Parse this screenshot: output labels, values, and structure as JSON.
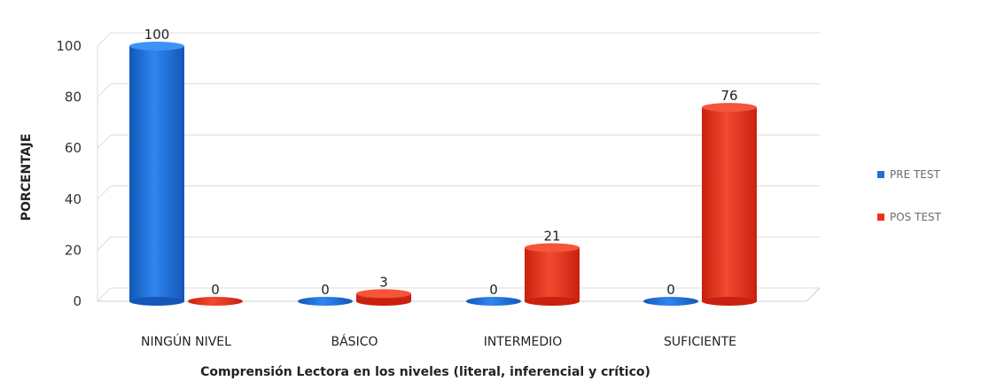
{
  "chart_data": {
    "type": "bar",
    "title": "",
    "xlabel": "Comprensión Lectora en los niveles (literal, inferencial y crítico)",
    "ylabel": "PORCENTAJE",
    "categories": [
      "NINGÚN NIVEL",
      "BÁSICO",
      "INTERMEDIO",
      "SUFICIENTE"
    ],
    "series": [
      {
        "name": "PRE TEST",
        "values": [
          100,
          0,
          0,
          0
        ],
        "color": "#1f6fd6"
      },
      {
        "name": "POS TEST",
        "values": [
          0,
          3,
          21,
          76
        ],
        "color": "#e8321f"
      }
    ],
    "yticks": [
      "0",
      "20",
      "40",
      "60",
      "80",
      "100"
    ],
    "ylim": [
      0,
      100
    ],
    "grid": true,
    "legend_position": "right",
    "data_labels": true
  }
}
